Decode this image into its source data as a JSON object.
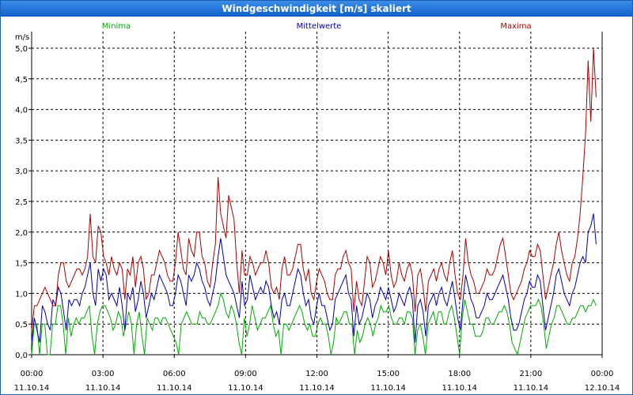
{
  "window": {
    "title": "Windgeschwindigkeit [m/s] skaliert"
  },
  "chart_data": {
    "type": "line",
    "title": "Windgeschwindigkeit [m/s] skaliert",
    "ylabel": "m/s",
    "ylim": [
      0,
      5
    ],
    "yticks": [
      "0,0",
      "0,5",
      "1,0",
      "1,5",
      "2,0",
      "2,5",
      "3,0",
      "3,5",
      "4,0",
      "4,5",
      "5,0"
    ],
    "xlim_hours": [
      0,
      24
    ],
    "xticks": [
      {
        "time": "00:00",
        "date": "11.10.14"
      },
      {
        "time": "03:00",
        "date": "11.10.14"
      },
      {
        "time": "06:00",
        "date": "11.10.14"
      },
      {
        "time": "09:00",
        "date": "11.10.14"
      },
      {
        "time": "12:00",
        "date": "11.10.14"
      },
      {
        "time": "15:00",
        "date": "11.10.14"
      },
      {
        "time": "18:00",
        "date": "11.10.14"
      },
      {
        "time": "21:00",
        "date": "11.10.14"
      },
      {
        "time": "00:00",
        "date": "12.10.14"
      }
    ],
    "grid": true,
    "legend": "top",
    "series": [
      {
        "name": "Minima",
        "color": "#00aa00",
        "values": [
          0.0,
          0.5,
          0.5,
          0.0,
          0.5,
          0.5,
          0.0,
          0.0,
          0.5,
          0.5,
          0.8,
          0.8,
          0.5,
          0.0,
          0.6,
          0.3,
          0.5,
          0.6,
          0.5,
          0.6,
          0.6,
          0.7,
          0.8,
          0.3,
          0.0,
          0.5,
          0.7,
          0.8,
          0.8,
          0.7,
          0.6,
          0.4,
          0.5,
          0.7,
          0.6,
          0.3,
          0.5,
          0.7,
          0.5,
          0.0,
          0.5,
          0.7,
          0.3,
          0.0,
          0.6,
          0.5,
          0.4,
          0.6,
          0.6,
          0.5,
          0.6,
          0.6,
          0.5,
          0.4,
          0.3,
          0.2,
          0.0,
          0.5,
          0.6,
          0.7,
          0.6,
          0.5,
          0.5,
          0.5,
          0.7,
          0.6,
          0.6,
          0.5,
          0.5,
          0.6,
          0.7,
          0.8,
          1.0,
          0.9,
          0.7,
          0.6,
          0.8,
          0.7,
          0.5,
          0.2,
          0.0,
          0.6,
          0.3,
          0.5,
          0.8,
          0.6,
          0.4,
          0.5,
          0.6,
          0.6,
          0.7,
          0.8,
          0.5,
          0.3,
          0.4,
          0.0,
          0.5,
          0.5,
          0.4,
          0.5,
          0.6,
          0.7,
          0.8,
          0.7,
          0.5,
          0.4,
          0.5,
          0.3,
          0.3,
          0.5,
          0.6,
          0.5,
          0.5,
          0.3,
          0.0,
          0.2,
          0.6,
          0.5,
          0.6,
          0.7,
          0.7,
          0.5,
          0.5,
          0.0,
          0.4,
          0.2,
          0.3,
          0.5,
          0.6,
          0.5,
          0.3,
          0.5,
          0.6,
          0.8,
          0.7,
          0.7,
          0.8,
          0.6,
          0.5,
          0.5,
          0.6,
          0.6,
          0.5,
          0.7,
          0.7,
          0.6,
          0.0,
          0.4,
          0.5,
          0.3,
          0.0,
          0.5,
          0.6,
          0.7,
          0.5,
          0.7,
          0.7,
          0.5,
          0.5,
          0.7,
          0.8,
          0.6,
          0.3,
          0.0,
          0.6,
          0.9,
          0.7,
          0.5,
          0.5,
          0.3,
          0.3,
          0.3,
          0.4,
          0.6,
          0.6,
          0.5,
          0.5,
          0.6,
          0.7,
          0.7,
          0.8,
          0.7,
          0.5,
          0.2,
          0.1,
          0.0,
          0.2,
          0.4,
          0.6,
          0.7,
          0.8,
          0.8,
          0.8,
          0.9,
          0.8,
          0.5,
          0.1,
          0.3,
          0.5,
          0.6,
          0.8,
          0.8,
          0.7,
          0.6,
          0.5,
          0.5,
          0.6,
          0.6,
          0.7,
          0.8,
          0.8,
          0.7,
          0.8,
          0.8,
          0.9,
          0.8
        ]
      },
      {
        "name": "Mittelwerte",
        "color": "#0000aa",
        "values": [
          0.2,
          0.6,
          0.4,
          0.2,
          0.8,
          0.7,
          0.5,
          0.4,
          0.9,
          0.8,
          1.1,
          1.0,
          0.7,
          0.4,
          0.9,
          0.8,
          0.9,
          0.9,
          0.8,
          1.0,
          1.1,
          1.3,
          1.5,
          1.0,
          0.8,
          1.4,
          1.2,
          1.4,
          1.3,
          0.9,
          1.0,
          0.9,
          0.8,
          1.1,
          0.8,
          0.4,
          1.0,
          0.9,
          1.1,
          0.7,
          0.9,
          1.2,
          1.0,
          0.6,
          0.8,
          1.0,
          0.9,
          1.1,
          1.3,
          1.2,
          1.1,
          1.0,
          0.8,
          0.8,
          1.0,
          1.3,
          1.2,
          1.0,
          0.8,
          1.3,
          1.2,
          1.3,
          1.5,
          1.4,
          1.2,
          1.1,
          0.9,
          0.8,
          1.0,
          1.2,
          1.6,
          1.9,
          1.6,
          1.3,
          1.2,
          1.1,
          1.0,
          0.8,
          0.6,
          1.2,
          0.8,
          0.9,
          1.3,
          1.1,
          0.9,
          1.0,
          1.1,
          1.0,
          1.2,
          1.1,
          0.8,
          0.6,
          0.7,
          0.5,
          0.9,
          1.0,
          0.8,
          0.8,
          1.0,
          1.2,
          1.4,
          1.3,
          1.0,
          0.8,
          0.9,
          0.6,
          0.5,
          0.8,
          1.0,
          0.8,
          0.8,
          0.6,
          0.4,
          0.5,
          0.9,
          1.0,
          1.1,
          1.2,
          1.3,
          1.0,
          0.9,
          0.3,
          0.8,
          0.5,
          0.6,
          0.8,
          1.0,
          0.9,
          0.6,
          0.8,
          0.9,
          1.1,
          1.0,
          0.9,
          1.1,
          0.9,
          0.7,
          0.8,
          1.0,
          0.9,
          0.8,
          1.0,
          1.1,
          0.9,
          0.2,
          0.8,
          0.9,
          0.7,
          0.3,
          0.8,
          0.9,
          1.0,
          0.8,
          1.0,
          1.1,
          0.9,
          0.8,
          1.0,
          1.2,
          0.9,
          0.6,
          0.4,
          0.9,
          1.3,
          1.1,
          0.9,
          0.8,
          0.6,
          0.6,
          0.7,
          0.8,
          1.0,
          0.9,
          0.9,
          1.0,
          1.1,
          1.2,
          1.3,
          1.1,
          0.9,
          0.6,
          0.4,
          0.4,
          0.5,
          0.7,
          0.9,
          1.0,
          1.2,
          1.1,
          1.1,
          1.3,
          1.2,
          0.8,
          0.4,
          0.6,
          0.8,
          1.0,
          1.3,
          1.4,
          1.2,
          1.0,
          0.9,
          0.8,
          1.0,
          1.1,
          1.3,
          1.5,
          1.6,
          1.5,
          2.0,
          2.1,
          2.3,
          1.8
        ]
      },
      {
        "name": "Maxima",
        "color": "#aa0000",
        "values": [
          0.4,
          0.8,
          0.8,
          0.9,
          1.0,
          1.1,
          1.0,
          0.9,
          0.8,
          0.8,
          1.3,
          1.5,
          1.5,
          1.2,
          1.1,
          1.2,
          1.3,
          1.4,
          1.4,
          1.3,
          1.4,
          1.6,
          2.3,
          1.6,
          1.5,
          2.1,
          2.0,
          1.6,
          1.5,
          1.3,
          1.6,
          1.4,
          1.3,
          1.5,
          1.4,
          0.9,
          1.4,
          1.3,
          1.6,
          1.1,
          1.5,
          1.6,
          1.4,
          0.9,
          1.0,
          1.3,
          1.3,
          1.5,
          1.7,
          1.6,
          1.5,
          1.3,
          1.2,
          1.2,
          1.5,
          2.0,
          1.7,
          1.4,
          1.3,
          1.9,
          1.7,
          1.6,
          2.0,
          2.0,
          1.6,
          1.5,
          1.2,
          1.1,
          1.5,
          1.8,
          2.9,
          2.3,
          2.1,
          1.9,
          2.6,
          2.4,
          2.2,
          1.5,
          1.0,
          1.7,
          1.3,
          1.3,
          1.6,
          1.5,
          1.3,
          1.4,
          1.5,
          1.5,
          1.7,
          1.5,
          1.1,
          1.0,
          1.1,
          0.9,
          1.4,
          1.6,
          1.3,
          1.3,
          1.4,
          1.6,
          1.8,
          1.8,
          1.4,
          1.2,
          1.4,
          1.0,
          0.9,
          1.2,
          1.4,
          1.3,
          1.2,
          1.0,
          0.9,
          0.9,
          1.3,
          1.4,
          1.4,
          1.6,
          1.7,
          1.5,
          1.4,
          0.7,
          1.2,
          0.9,
          0.8,
          1.2,
          1.6,
          1.5,
          1.1,
          1.2,
          1.4,
          1.6,
          1.5,
          1.3,
          1.7,
          1.3,
          1.1,
          1.2,
          1.5,
          1.3,
          1.2,
          1.4,
          1.5,
          1.3,
          0.7,
          1.3,
          1.4,
          1.1,
          0.7,
          1.2,
          1.3,
          1.4,
          1.2,
          1.4,
          1.5,
          1.3,
          1.2,
          1.5,
          1.7,
          1.3,
          1.0,
          0.9,
          1.3,
          1.9,
          1.5,
          1.3,
          1.2,
          1.0,
          1.0,
          1.1,
          1.2,
          1.4,
          1.3,
          1.3,
          1.4,
          1.6,
          1.8,
          1.9,
          1.6,
          1.3,
          1.0,
          0.9,
          1.0,
          1.1,
          1.2,
          1.4,
          1.5,
          1.7,
          1.6,
          1.6,
          1.8,
          1.7,
          1.3,
          0.9,
          1.1,
          1.3,
          1.5,
          1.8,
          2.0,
          1.7,
          1.5,
          1.3,
          1.2,
          1.5,
          1.6,
          1.9,
          2.3,
          2.9,
          3.6,
          4.8,
          3.8,
          5.0,
          4.2
        ]
      }
    ]
  }
}
